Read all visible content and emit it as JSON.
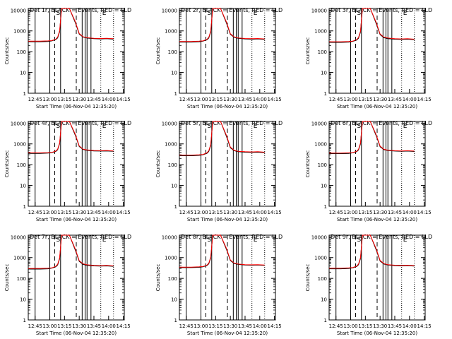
{
  "chart_data": [
    {
      "type": "line",
      "title": "Det 1r, BLACK = Events, RED = LLD",
      "xlabel": "Start Time (06-Nov-04 12:35:20)",
      "ylabel": "Counts/sec",
      "x_ticks": [
        "12:45",
        "13:00",
        "13:15",
        "13:30",
        "13:45",
        "14:00",
        "14:15"
      ],
      "y_ticks": [
        "1",
        "10",
        "100",
        "1000",
        "10000"
      ],
      "ylog": true,
      "ylim": [
        1,
        12000
      ],
      "xlim": [
        "12:38",
        "14:16"
      ],
      "markers": [
        "S",
        "E"
      ],
      "series": [
        {
          "color": "#000000",
          "x": [
            "12:38",
            "12:50",
            "12:58",
            "13:02",
            "13:06",
            "13:08",
            "13:10",
            "13:12",
            "13:20",
            "13:26",
            "13:30",
            "13:34",
            "13:38",
            "13:45",
            "13:52",
            "13:58",
            "14:05"
          ],
          "values": [
            300,
            300,
            310,
            330,
            380,
            460,
            900,
            12000,
            12000,
            2500,
            700,
            500,
            450,
            420,
            410,
            420,
            400
          ]
        },
        {
          "color": "#ff0000",
          "x": [
            "12:38",
            "12:50",
            "12:58",
            "13:02",
            "13:06",
            "13:08",
            "13:10",
            "13:12",
            "13:20",
            "13:26",
            "13:30",
            "13:34",
            "13:38",
            "13:45",
            "13:52",
            "13:58",
            "14:05"
          ],
          "values": [
            320,
            320,
            330,
            340,
            400,
            500,
            1000,
            12000,
            12000,
            2800,
            750,
            520,
            470,
            440,
            430,
            440,
            420
          ]
        }
      ]
    },
    {
      "type": "line",
      "title": "Det 2r, BLACK = Events, RED = LLD",
      "xlabel": "Start Time (06-Nov-04 12:35:20)",
      "ylabel": "Counts/sec",
      "x_ticks": [
        "12:45",
        "13:00",
        "13:15",
        "13:30",
        "13:45",
        "14:00",
        "14:15"
      ],
      "y_ticks": [
        "1",
        "10",
        "100",
        "1000",
        "10000"
      ],
      "ylog": true,
      "ylim": [
        1,
        12000
      ],
      "xlim": [
        "12:38",
        "14:16"
      ],
      "markers": [
        "S",
        "E"
      ],
      "series": [
        {
          "color": "#000000",
          "x": [
            "12:38",
            "12:50",
            "12:58",
            "13:02",
            "13:06",
            "13:08",
            "13:10",
            "13:12",
            "13:20",
            "13:26",
            "13:30",
            "13:34",
            "13:38",
            "13:45",
            "13:52",
            "13:58",
            "14:05"
          ],
          "values": [
            290,
            290,
            300,
            320,
            370,
            450,
            880,
            12000,
            12000,
            2400,
            680,
            490,
            440,
            410,
            400,
            410,
            390
          ]
        },
        {
          "color": "#ff0000",
          "x": [
            "12:38",
            "12:50",
            "12:58",
            "13:02",
            "13:06",
            "13:08",
            "13:10",
            "13:12",
            "13:20",
            "13:26",
            "13:30",
            "13:34",
            "13:38",
            "13:45",
            "13:52",
            "13:58",
            "14:05"
          ],
          "values": [
            310,
            310,
            320,
            330,
            390,
            490,
            980,
            12000,
            12000,
            2700,
            730,
            510,
            460,
            430,
            420,
            430,
            410
          ]
        }
      ]
    },
    {
      "type": "line",
      "title": "Det 3r, BLACK = Events, RED = LLD",
      "xlabel": "Start Time (06-Nov-04 12:35:20)",
      "ylabel": "Counts/sec",
      "x_ticks": [
        "12:45",
        "13:00",
        "13:15",
        "13:30",
        "13:45",
        "14:00",
        "14:15"
      ],
      "y_ticks": [
        "1",
        "10",
        "100",
        "1000",
        "10000"
      ],
      "ylog": true,
      "ylim": [
        1,
        12000
      ],
      "xlim": [
        "12:38",
        "14:16"
      ],
      "markers": [
        "S",
        "E"
      ],
      "series": [
        {
          "color": "#000000",
          "x": [
            "12:38",
            "12:50",
            "12:58",
            "13:02",
            "13:06",
            "13:08",
            "13:10",
            "13:12",
            "13:20",
            "13:26",
            "13:30",
            "13:34",
            "13:38",
            "13:45",
            "13:52",
            "13:58",
            "14:05"
          ],
          "values": [
            280,
            280,
            290,
            310,
            360,
            440,
            860,
            12000,
            12000,
            2300,
            660,
            470,
            420,
            400,
            390,
            400,
            380
          ]
        },
        {
          "color": "#ff0000",
          "x": [
            "12:38",
            "12:50",
            "12:58",
            "13:02",
            "13:06",
            "13:08",
            "13:10",
            "13:12",
            "13:20",
            "13:26",
            "13:30",
            "13:34",
            "13:38",
            "13:45",
            "13:52",
            "13:58",
            "14:05"
          ],
          "values": [
            300,
            300,
            310,
            320,
            380,
            480,
            960,
            12000,
            12000,
            2600,
            710,
            500,
            450,
            420,
            410,
            420,
            400
          ]
        }
      ]
    },
    {
      "type": "line",
      "title": "Det 4r, BLACK = Events, RED = LLD",
      "xlabel": "Start Time (06-Nov-04 12:35:20)",
      "ylabel": "Counts/sec",
      "x_ticks": [
        "12:45",
        "13:00",
        "13:15",
        "13:30",
        "13:45",
        "14:00",
        "14:15"
      ],
      "y_ticks": [
        "1",
        "10",
        "100",
        "1000",
        "10000"
      ],
      "ylog": true,
      "ylim": [
        1,
        12000
      ],
      "xlim": [
        "12:38",
        "14:16"
      ],
      "markers": [
        "S",
        "E"
      ],
      "series": [
        {
          "color": "#000000",
          "x": [
            "12:38",
            "12:50",
            "12:58",
            "13:02",
            "13:06",
            "13:08",
            "13:10",
            "13:12",
            "13:20",
            "13:26",
            "13:30",
            "13:34",
            "13:38",
            "13:45",
            "13:52",
            "13:58",
            "14:05"
          ],
          "values": [
            350,
            350,
            360,
            380,
            430,
            520,
            1000,
            12000,
            12000,
            2600,
            750,
            540,
            490,
            460,
            450,
            460,
            440
          ]
        },
        {
          "color": "#ff0000",
          "x": [
            "12:38",
            "12:50",
            "12:58",
            "13:02",
            "13:06",
            "13:08",
            "13:10",
            "13:12",
            "13:20",
            "13:26",
            "13:30",
            "13:34",
            "13:38",
            "13:45",
            "13:52",
            "13:58",
            "14:05"
          ],
          "values": [
            370,
            370,
            380,
            390,
            450,
            560,
            1100,
            12000,
            12000,
            2900,
            800,
            560,
            510,
            480,
            470,
            480,
            460
          ]
        }
      ]
    },
    {
      "type": "line",
      "title": "Det 5r, BLACK = Events, RED = LLD",
      "xlabel": "Start Time (06-Nov-04 12:35:20)",
      "ylabel": "Counts/sec",
      "x_ticks": [
        "12:45",
        "13:00",
        "13:15",
        "13:30",
        "13:45",
        "14:00",
        "14:15"
      ],
      "y_ticks": [
        "1",
        "10",
        "100",
        "1000",
        "10000"
      ],
      "ylog": true,
      "ylim": [
        1,
        12000
      ],
      "xlim": [
        "12:38",
        "14:16"
      ],
      "markers": [
        "S",
        "E"
      ],
      "series": [
        {
          "color": "#000000",
          "x": [
            "12:38",
            "12:50",
            "12:58",
            "13:02",
            "13:06",
            "13:08",
            "13:10",
            "13:12",
            "13:20",
            "13:26",
            "13:30",
            "13:34",
            "13:38",
            "13:45",
            "13:52",
            "13:58",
            "14:05"
          ],
          "values": [
            270,
            270,
            280,
            300,
            350,
            430,
            840,
            12000,
            12000,
            2300,
            650,
            470,
            420,
            400,
            390,
            400,
            380
          ]
        },
        {
          "color": "#ff0000",
          "x": [
            "12:38",
            "12:50",
            "12:58",
            "13:02",
            "13:06",
            "13:08",
            "13:10",
            "13:12",
            "13:20",
            "13:26",
            "13:30",
            "13:34",
            "13:38",
            "13:45",
            "13:52",
            "13:58",
            "14:05"
          ],
          "values": [
            290,
            290,
            300,
            310,
            370,
            470,
            940,
            12000,
            12000,
            2600,
            700,
            490,
            440,
            420,
            410,
            420,
            400
          ]
        }
      ]
    },
    {
      "type": "line",
      "title": "Det 6r, BLACK = Events, RED = LLD",
      "xlabel": "Start Time (06-Nov-04 12:35:20)",
      "ylabel": "Counts/sec",
      "x_ticks": [
        "12:45",
        "13:00",
        "13:15",
        "13:30",
        "13:45",
        "14:00",
        "14:15"
      ],
      "y_ticks": [
        "1",
        "10",
        "100",
        "1000",
        "10000"
      ],
      "ylog": true,
      "ylim": [
        1,
        12000
      ],
      "xlim": [
        "12:38",
        "14:16"
      ],
      "markers": [
        "S",
        "E"
      ],
      "series": [
        {
          "color": "#000000",
          "x": [
            "12:38",
            "12:50",
            "12:58",
            "13:02",
            "13:06",
            "13:08",
            "13:10",
            "13:12",
            "13:20",
            "13:26",
            "13:30",
            "13:34",
            "13:38",
            "13:45",
            "13:52",
            "13:58",
            "14:05"
          ],
          "values": [
            340,
            340,
            350,
            370,
            420,
            510,
            980,
            12000,
            12000,
            2500,
            730,
            530,
            480,
            450,
            440,
            450,
            430
          ]
        },
        {
          "color": "#ff0000",
          "x": [
            "12:38",
            "12:50",
            "12:58",
            "13:02",
            "13:06",
            "13:08",
            "13:10",
            "13:12",
            "13:20",
            "13:26",
            "13:30",
            "13:34",
            "13:38",
            "13:45",
            "13:52",
            "13:58",
            "14:05"
          ],
          "values": [
            360,
            360,
            370,
            380,
            440,
            550,
            1080,
            12000,
            12000,
            2800,
            780,
            550,
            500,
            470,
            460,
            470,
            450
          ]
        }
      ]
    },
    {
      "type": "line",
      "title": "Det 7r, BLACK = Events, RED = LLD",
      "xlabel": "Start Time (06-Nov-04 12:35:20)",
      "ylabel": "Counts/sec",
      "x_ticks": [
        "12:45",
        "13:00",
        "13:15",
        "13:30",
        "13:45",
        "14:00",
        "14:15"
      ],
      "y_ticks": [
        "1",
        "10",
        "100",
        "1000",
        "10000"
      ],
      "ylog": true,
      "ylim": [
        1,
        12000
      ],
      "xlim": [
        "12:38",
        "14:16"
      ],
      "markers": [
        "S",
        "E"
      ],
      "series": [
        {
          "color": "#000000",
          "x": [
            "12:38",
            "12:50",
            "12:58",
            "13:02",
            "13:06",
            "13:08",
            "13:10",
            "13:12",
            "13:20",
            "13:26",
            "13:30",
            "13:34",
            "13:38",
            "13:45",
            "13:52",
            "13:58",
            "14:05"
          ],
          "values": [
            280,
            280,
            290,
            310,
            360,
            440,
            860,
            12000,
            12000,
            2300,
            660,
            470,
            420,
            400,
            390,
            400,
            380
          ]
        },
        {
          "color": "#ff0000",
          "x": [
            "12:38",
            "12:50",
            "12:58",
            "13:02",
            "13:06",
            "13:08",
            "13:10",
            "13:12",
            "13:20",
            "13:26",
            "13:30",
            "13:34",
            "13:38",
            "13:45",
            "13:52",
            "13:58",
            "14:05"
          ],
          "values": [
            300,
            300,
            310,
            320,
            380,
            480,
            960,
            12000,
            12000,
            2600,
            710,
            500,
            450,
            420,
            410,
            420,
            400
          ]
        }
      ]
    },
    {
      "type": "line",
      "title": "Det 8r, BLACK = Events, RED = LLD",
      "xlabel": "Start Time (06-Nov-04 12:35:20)",
      "ylabel": "Counts/sec",
      "x_ticks": [
        "12:45",
        "13:00",
        "13:15",
        "13:30",
        "13:45",
        "14:00",
        "14:15"
      ],
      "y_ticks": [
        "1",
        "10",
        "100",
        "1000",
        "10000"
      ],
      "ylog": true,
      "ylim": [
        1,
        12000
      ],
      "xlim": [
        "12:38",
        "14:16"
      ],
      "markers": [
        "S",
        "E"
      ],
      "series": [
        {
          "color": "#000000",
          "x": [
            "12:38",
            "12:50",
            "12:58",
            "13:02",
            "13:06",
            "13:08",
            "13:10",
            "13:12",
            "13:20",
            "13:26",
            "13:30",
            "13:34",
            "13:38",
            "13:45",
            "13:52",
            "13:58",
            "14:05"
          ],
          "values": [
            330,
            330,
            340,
            360,
            410,
            500,
            960,
            12000,
            12000,
            2500,
            720,
            520,
            470,
            440,
            430,
            440,
            420
          ]
        },
        {
          "color": "#ff0000",
          "x": [
            "12:38",
            "12:50",
            "12:58",
            "13:02",
            "13:06",
            "13:08",
            "13:10",
            "13:12",
            "13:20",
            "13:26",
            "13:30",
            "13:34",
            "13:38",
            "13:45",
            "13:52",
            "13:58",
            "14:05"
          ],
          "values": [
            350,
            350,
            360,
            370,
            430,
            540,
            1060,
            12000,
            12000,
            2800,
            770,
            540,
            490,
            460,
            450,
            460,
            440
          ]
        }
      ]
    },
    {
      "type": "line",
      "title": "Det 9r, BLACK = Events, RED = LLD",
      "xlabel": "Start Time (06-Nov-04 12:35:20)",
      "ylabel": "Counts/sec",
      "x_ticks": [
        "12:45",
        "13:00",
        "13:15",
        "13:30",
        "13:45",
        "14:00",
        "14:15"
      ],
      "y_ticks": [
        "1",
        "10",
        "100",
        "1000",
        "10000"
      ],
      "ylog": true,
      "ylim": [
        1,
        12000
      ],
      "xlim": [
        "12:38",
        "14:16"
      ],
      "markers": [
        "S",
        "E"
      ],
      "series": [
        {
          "color": "#000000",
          "x": [
            "12:38",
            "12:50",
            "12:58",
            "13:02",
            "13:06",
            "13:08",
            "13:10",
            "13:12",
            "13:20",
            "13:26",
            "13:30",
            "13:34",
            "13:38",
            "13:45",
            "13:52",
            "13:58",
            "14:05"
          ],
          "values": [
            290,
            290,
            300,
            320,
            370,
            450,
            880,
            12000,
            12000,
            2400,
            680,
            490,
            440,
            410,
            400,
            410,
            390
          ]
        },
        {
          "color": "#ff0000",
          "x": [
            "12:38",
            "12:50",
            "12:58",
            "13:02",
            "13:06",
            "13:08",
            "13:10",
            "13:12",
            "13:20",
            "13:26",
            "13:30",
            "13:34",
            "13:38",
            "13:45",
            "13:52",
            "13:58",
            "14:05"
          ],
          "values": [
            310,
            310,
            320,
            330,
            390,
            490,
            980,
            12000,
            12000,
            2700,
            730,
            510,
            460,
            430,
            420,
            430,
            410
          ]
        }
      ]
    }
  ],
  "event_lines": {
    "solid": [
      "12:45",
      "13:00",
      "13:11",
      "13:33",
      "13:36",
      "13:38",
      "13:42"
    ],
    "dashed": [
      "13:05",
      "13:27"
    ],
    "dotted": [
      "13:52",
      "14:05"
    ]
  }
}
